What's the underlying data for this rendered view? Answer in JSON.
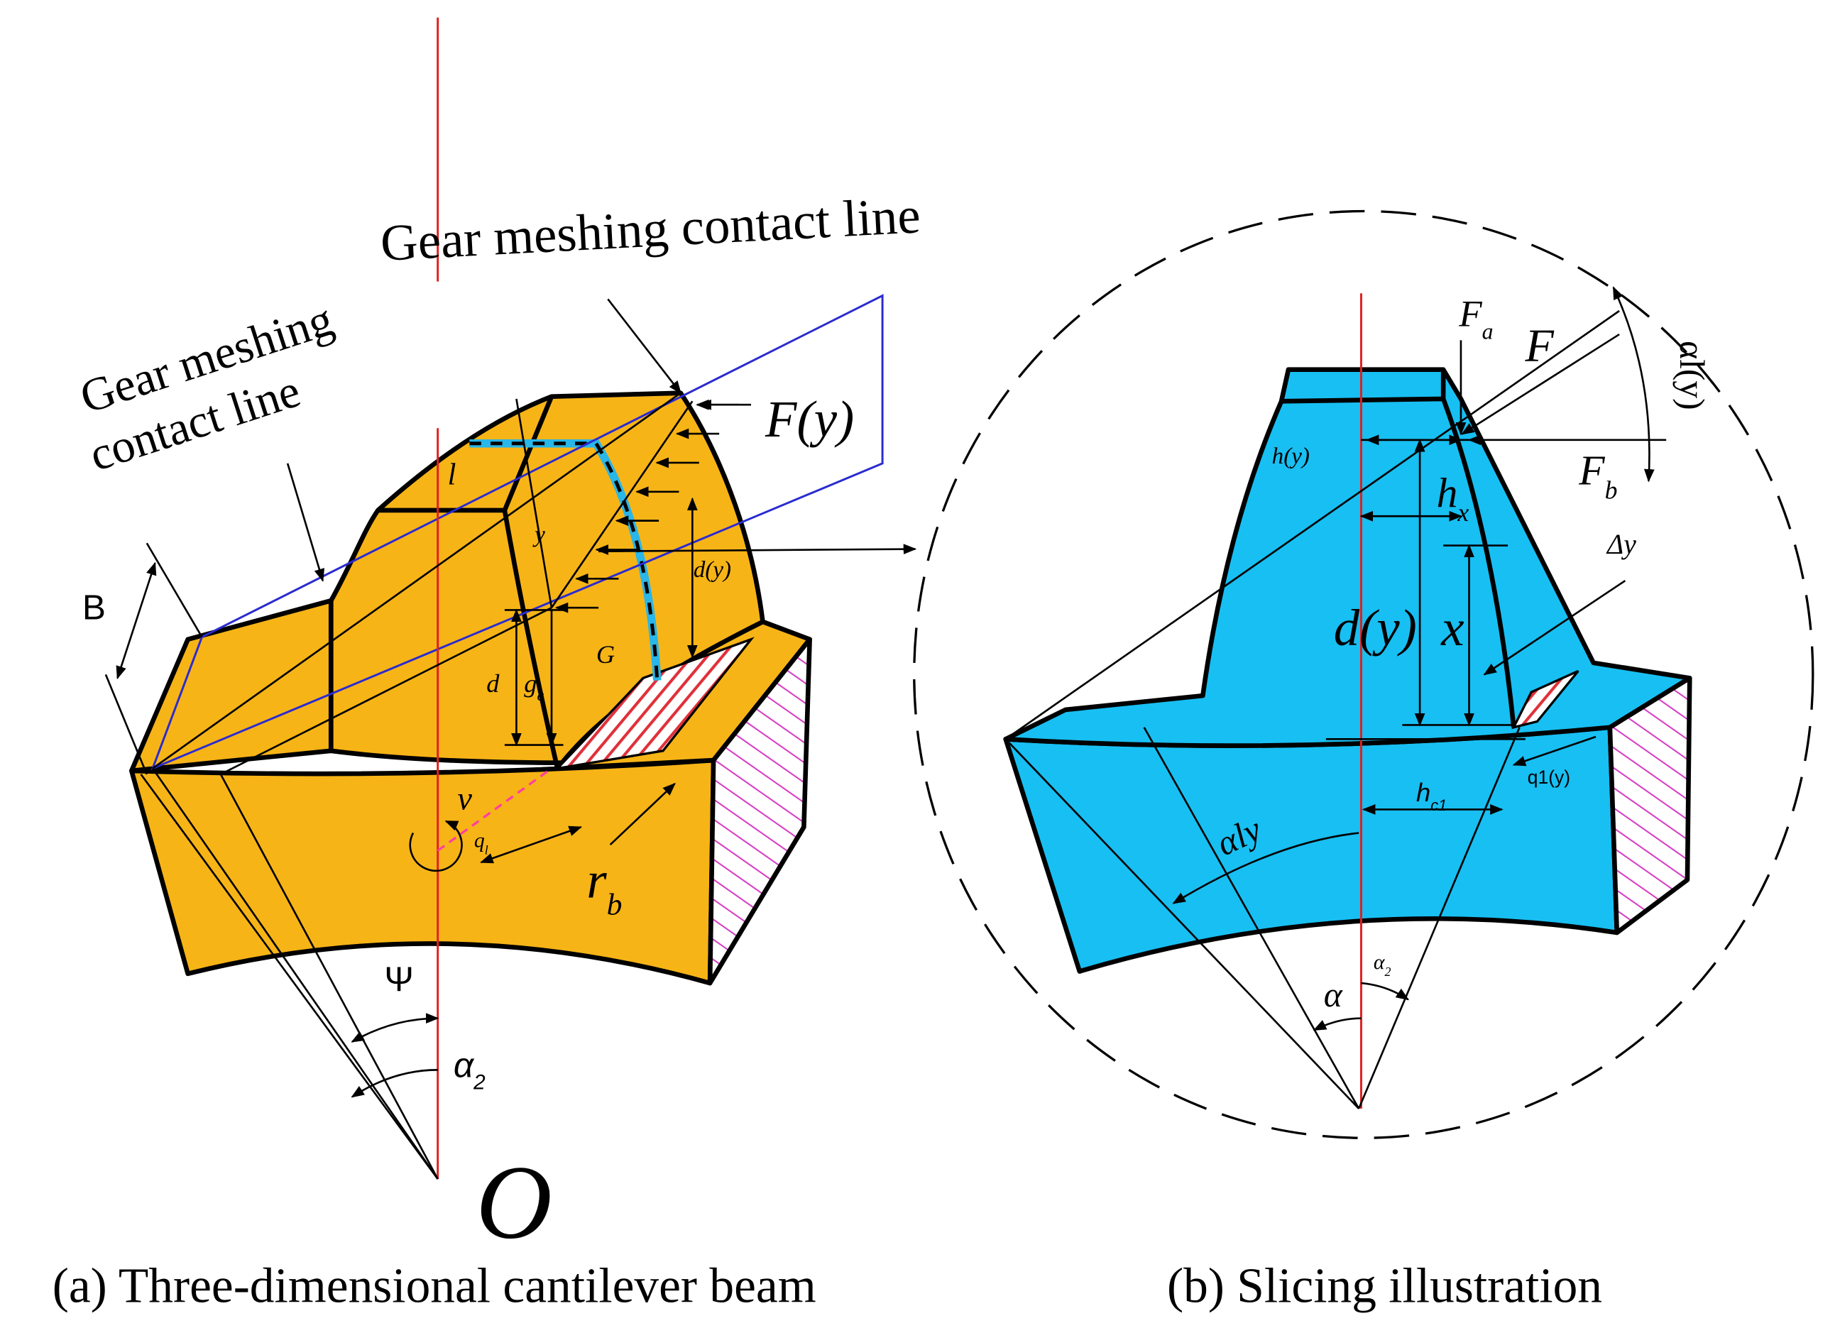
{
  "panel_a": {
    "caption": "(a) Three-dimensional cantilever beam",
    "labels": [
      {
        "text": "Gear meshing contact line"
      },
      {
        "text": "Gear meshing"
      },
      {
        "text": "contact line"
      },
      {
        "text": "F(y)"
      },
      {
        "text": "B"
      },
      {
        "text": "l"
      },
      {
        "text": "y"
      },
      {
        "text": "d(y)"
      },
      {
        "text": "G"
      },
      {
        "text": "d"
      },
      {
        "text": "g",
        "sub": "c"
      },
      {
        "text": "ν"
      },
      {
        "text": "q",
        "sub": "l"
      },
      {
        "text": "r",
        "sub": "b"
      },
      {
        "text": "Ψ"
      },
      {
        "text": "α",
        "sub": "2"
      },
      {
        "text": "O"
      }
    ]
  },
  "panel_b": {
    "caption": "(b) Slicing illustration",
    "labels": [
      {
        "text": "F",
        "sub": "a"
      },
      {
        "text": "F"
      },
      {
        "text": "αl(y)"
      },
      {
        "text": "h(y)"
      },
      {
        "text": "h",
        "sub": "x"
      },
      {
        "text": "F",
        "sub": "b"
      },
      {
        "text": "Δy"
      },
      {
        "text": "d(y)"
      },
      {
        "text": "x"
      },
      {
        "text": "h",
        "sub": "c1"
      },
      {
        "text": "q1(y)"
      },
      {
        "text": "αly"
      },
      {
        "text": "α"
      },
      {
        "text": "α",
        "sub": "2"
      }
    ]
  }
}
